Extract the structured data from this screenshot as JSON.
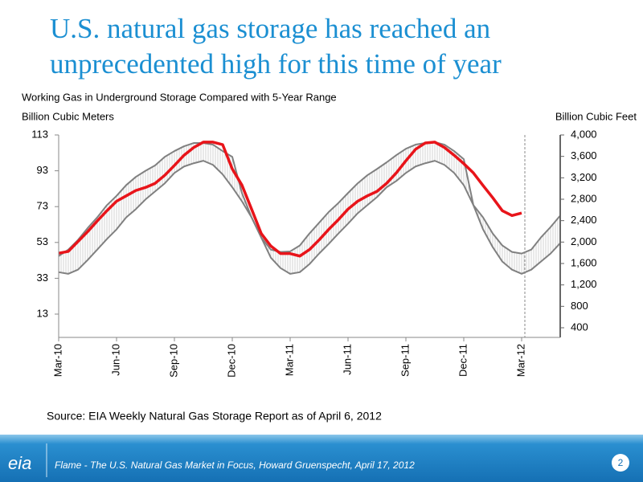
{
  "slide": {
    "title": "U.S. natural gas storage has reached an unprecedented high for this time of year",
    "source": "Source: EIA Weekly Natural Gas Storage Report as of April 6, 2012",
    "footer": "Flame - The U.S. Natural Gas Market in Focus, Howard Gruenspecht, April 17, 2012",
    "page_number": "2",
    "logo": "eia"
  },
  "chart_data": {
    "type": "line",
    "title": "Working Gas in Underground Storage Compared with 5-Year Range",
    "y_label": "Billion Cubic Meters",
    "y2_label": "Billion Cubic Feet",
    "categories": [
      "Mar-10",
      null,
      null,
      null,
      null,
      null,
      "Jun-10",
      null,
      null,
      null,
      null,
      null,
      "Sep-10",
      null,
      null,
      null,
      null,
      null,
      "Dec-10",
      null,
      null,
      null,
      null,
      null,
      "Mar-11",
      null,
      null,
      null,
      null,
      null,
      "Jun-11",
      null,
      null,
      null,
      null,
      null,
      "Sep-11",
      null,
      null,
      null,
      null,
      null,
      "Dec-11",
      null,
      null,
      null,
      null,
      null,
      "Mar-12",
      null,
      null,
      null,
      null
    ],
    "ylim": [
      0,
      113
    ],
    "yticks": [
      13,
      33,
      53,
      73,
      93,
      113
    ],
    "y2lim": [
      220,
      4000
    ],
    "y2ticks": [
      400,
      800,
      {
        "value": 1200,
        "label": "1,200"
      },
      {
        "value": 1600,
        "label": "1,600"
      },
      {
        "value": 2000,
        "label": "2,000"
      },
      {
        "value": 2400,
        "label": "2,400"
      },
      {
        "value": 2800,
        "label": "2,800"
      },
      {
        "value": 3200,
        "label": "3,200"
      },
      {
        "value": 3600,
        "label": "3,600"
      },
      {
        "value": 4000,
        "label": "4,000"
      }
    ],
    "series": [
      {
        "color": "#808080",
        "values": [
          45.4,
          49,
          54.4,
          61,
          67,
          73.8,
          79,
          85,
          89.6,
          93,
          96,
          100.8,
          104,
          106.7,
          108.5,
          108.5,
          107.6,
          104,
          100.8,
          80.6,
          67,
          55.8,
          49,
          47.7,
          48,
          51.3,
          58,
          64,
          70,
          75,
          80.6,
          86,
          90.5,
          94,
          97.7,
          101.7,
          105.3,
          107.6,
          108.5,
          109,
          107.6,
          104,
          99.5,
          73.8,
          67,
          58,
          51.3,
          47.7,
          46.8,
          49,
          55.8,
          61.6,
          68
        ]
      },
      {
        "color": "#808080",
        "values": [
          36.4,
          35.5,
          37.8,
          43.2,
          49,
          54.9,
          60.3,
          67,
          71.6,
          77,
          81.5,
          86,
          91.8,
          95.4,
          97.2,
          98.6,
          96.3,
          91,
          83.8,
          76,
          67,
          55.8,
          44.5,
          38.7,
          35.5,
          36.4,
          40.9,
          46.8,
          52.2,
          58,
          63.5,
          69.3,
          73.8,
          78.3,
          83.8,
          87.3,
          91.8,
          95.4,
          97.2,
          98.6,
          96.3,
          91.8,
          85,
          73.8,
          60.3,
          50.4,
          42.3,
          37.8,
          35.5,
          37.8,
          42.3,
          46.8,
          52.6
        ]
      },
      {
        "color": "#e8141a",
        "values": [
          47,
          48,
          53.5,
          59,
          65,
          70.7,
          76,
          79,
          82,
          83.7,
          86,
          90.5,
          96,
          101.7,
          106,
          109,
          109,
          107.6,
          94,
          85,
          71.6,
          58,
          51,
          46.8,
          46.8,
          45.4,
          49,
          54.4,
          60.3,
          65.7,
          71.6,
          76,
          79,
          81.5,
          86,
          91.8,
          98.6,
          105,
          108.5,
          109,
          106,
          101.7,
          97,
          91.8,
          84.8,
          78,
          70.7,
          68,
          69.4,
          null,
          null,
          null,
          null
        ]
      }
    ]
  }
}
